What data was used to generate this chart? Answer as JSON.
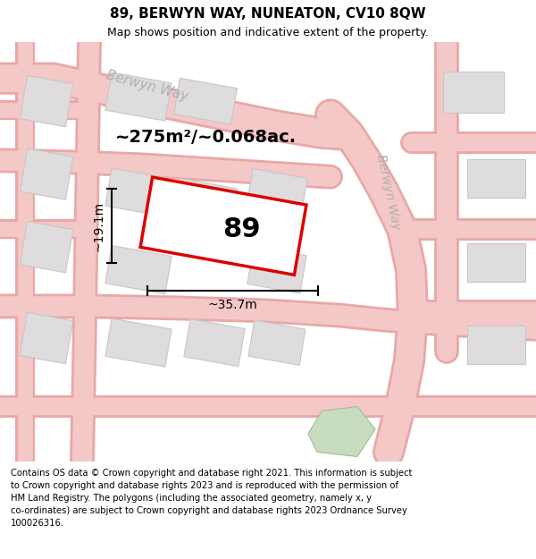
{
  "title": "89, BERWYN WAY, NUNEATON, CV10 8QW",
  "subtitle": "Map shows position and indicative extent of the property.",
  "footer": "Contains OS data © Crown copyright and database right 2021. This information is subject\nto Crown copyright and database rights 2023 and is reproduced with the permission of\nHM Land Registry. The polygons (including the associated geometry, namely x, y\nco-ordinates) are subject to Crown copyright and database rights 2023 Ordnance Survey\n100026316.",
  "map_bg": "#f2f0f0",
  "road_color": "#f5c8c8",
  "road_edge_color": "#e8a8a8",
  "building_color": "#dedcdc",
  "building_edge_color": "#c8c6c6",
  "plot_color": "#dd0000",
  "plot_number": "89",
  "area_text": "~275m²/~0.068ac.",
  "width_text": "~35.7m",
  "height_text": "~19.1m",
  "title_fontsize": 11,
  "subtitle_fontsize": 9,
  "footer_fontsize": 7.2,
  "green_color": "#c8dcc0"
}
